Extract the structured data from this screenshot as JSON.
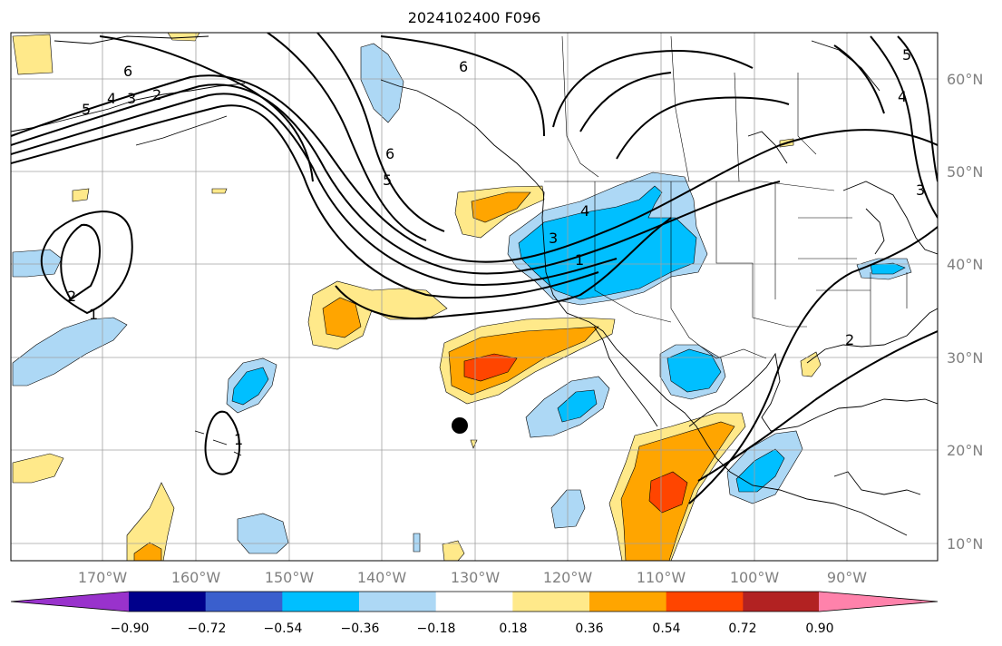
{
  "title": "2024102400 F096",
  "map": {
    "lon_ticks": [
      "170°W",
      "160°W",
      "150°W",
      "140°W",
      "130°W",
      "120°W",
      "110°W",
      "100°W",
      "90°W"
    ],
    "lat_ticks": [
      "60°N",
      "50°N",
      "40°N",
      "30°N",
      "20°N",
      "10°N"
    ],
    "contour_labels": [
      "6",
      "5",
      "4",
      "3",
      "2",
      "6",
      "6",
      "5",
      "4",
      "3",
      "1",
      "2",
      "1",
      "1",
      "2",
      "3",
      "4",
      "5"
    ],
    "marker": "black-dot"
  },
  "colorbar": {
    "labels": [
      "−0.90",
      "−0.72",
      "−0.54",
      "−0.36",
      "−0.18",
      "0.18",
      "0.36",
      "0.54",
      "0.72",
      "0.90"
    ],
    "colors": [
      "#9932cc",
      "#00008b",
      "#3a5fcd",
      "#00bfff",
      "#add8f5",
      "#ffffff",
      "#ffe98a",
      "#ffa500",
      "#ff4500",
      "#b22222",
      "#ff82ab"
    ]
  },
  "colors": {
    "pos1": "#ffe98a",
    "pos2": "#ffa500",
    "pos3": "#ff4500",
    "neg1": "#add8f5",
    "neg2": "#00bfff"
  }
}
